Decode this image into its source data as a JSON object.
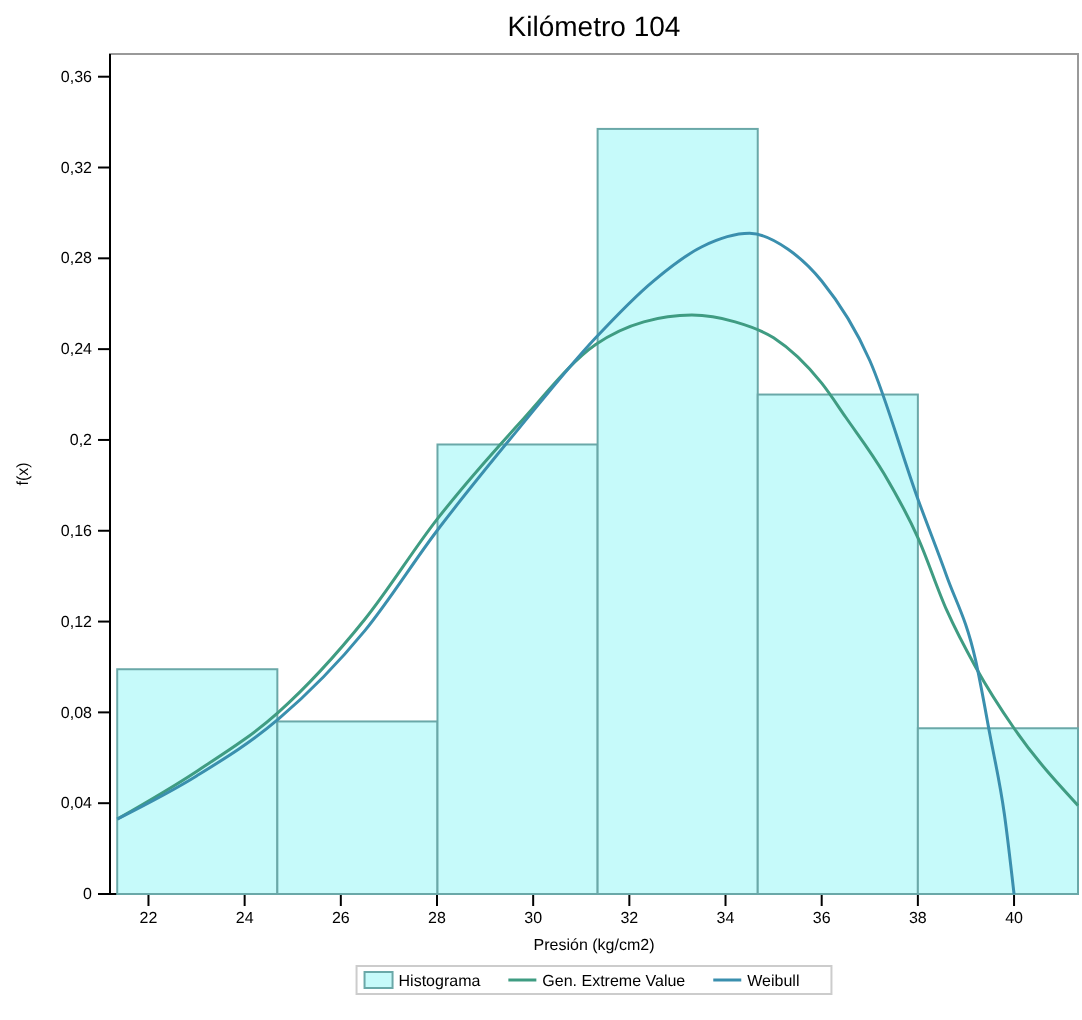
{
  "chart_data": {
    "type": "histogram",
    "title": "Kilómetro 104",
    "xlabel": "Presión (kg/cm2)",
    "ylabel": "f(x)",
    "bins": [
      21.35,
      24.68,
      28.01,
      31.34,
      34.67,
      38.0,
      41.33
    ],
    "series": [
      {
        "name": "Histograma",
        "color": "#c6fafa",
        "values": [
          0.099,
          0.076,
          0.198,
          0.337,
          0.22,
          0.073
        ]
      },
      {
        "type": "line",
        "name": "Gen. Extreme Value",
        "color": "#3f9c82",
        "x": [
          21.35,
          23,
          24.7,
          26.5,
          28,
          29.7,
          31.3,
          32.3,
          33.3,
          34.2,
          35,
          36,
          36.5,
          37.3,
          38,
          38.6,
          39.2,
          40,
          41.33
        ],
        "values": [
          0.033,
          0.054,
          0.08,
          0.121,
          0.165,
          0.207,
          0.242,
          0.252,
          0.255,
          0.252,
          0.245,
          0.225,
          0.21,
          0.185,
          0.157,
          0.125,
          0.1,
          0.073,
          0.039
        ]
      },
      {
        "type": "line",
        "name": "Weibull",
        "color": "#3a8fae",
        "x": [
          21.35,
          23,
          24.7,
          26.5,
          28,
          29.7,
          31.3,
          32.5,
          33.5,
          34.5,
          35.3,
          36,
          37,
          38,
          38.6,
          39.2,
          39.5,
          39.8,
          40
        ],
        "values": [
          0.033,
          0.052,
          0.077,
          0.116,
          0.16,
          0.205,
          0.245,
          0.27,
          0.285,
          0.291,
          0.284,
          0.27,
          0.235,
          0.174,
          0.14,
          0.103,
          0.07,
          0.035,
          0
        ]
      }
    ],
    "xlim": [
      21.2,
      41.33
    ],
    "ylim": [
      0,
      0.37
    ],
    "xticks": [
      22,
      24,
      26,
      28,
      30,
      32,
      34,
      36,
      38,
      40
    ],
    "yticks": [
      0,
      {
        "value": 0.04,
        "label": "0,04"
      },
      {
        "value": 0.08,
        "label": "0,08"
      },
      {
        "value": 0.12,
        "label": "0,12"
      },
      {
        "value": 0.16,
        "label": "0,16"
      },
      {
        "value": 0.2,
        "label": "0,2"
      },
      {
        "value": 0.24,
        "label": "0,24"
      },
      {
        "value": 0.28,
        "label": "0,28"
      },
      {
        "value": 0.32,
        "label": "0,32"
      },
      {
        "value": 0.36,
        "label": "0,36"
      }
    ],
    "legend": "bottom"
  }
}
